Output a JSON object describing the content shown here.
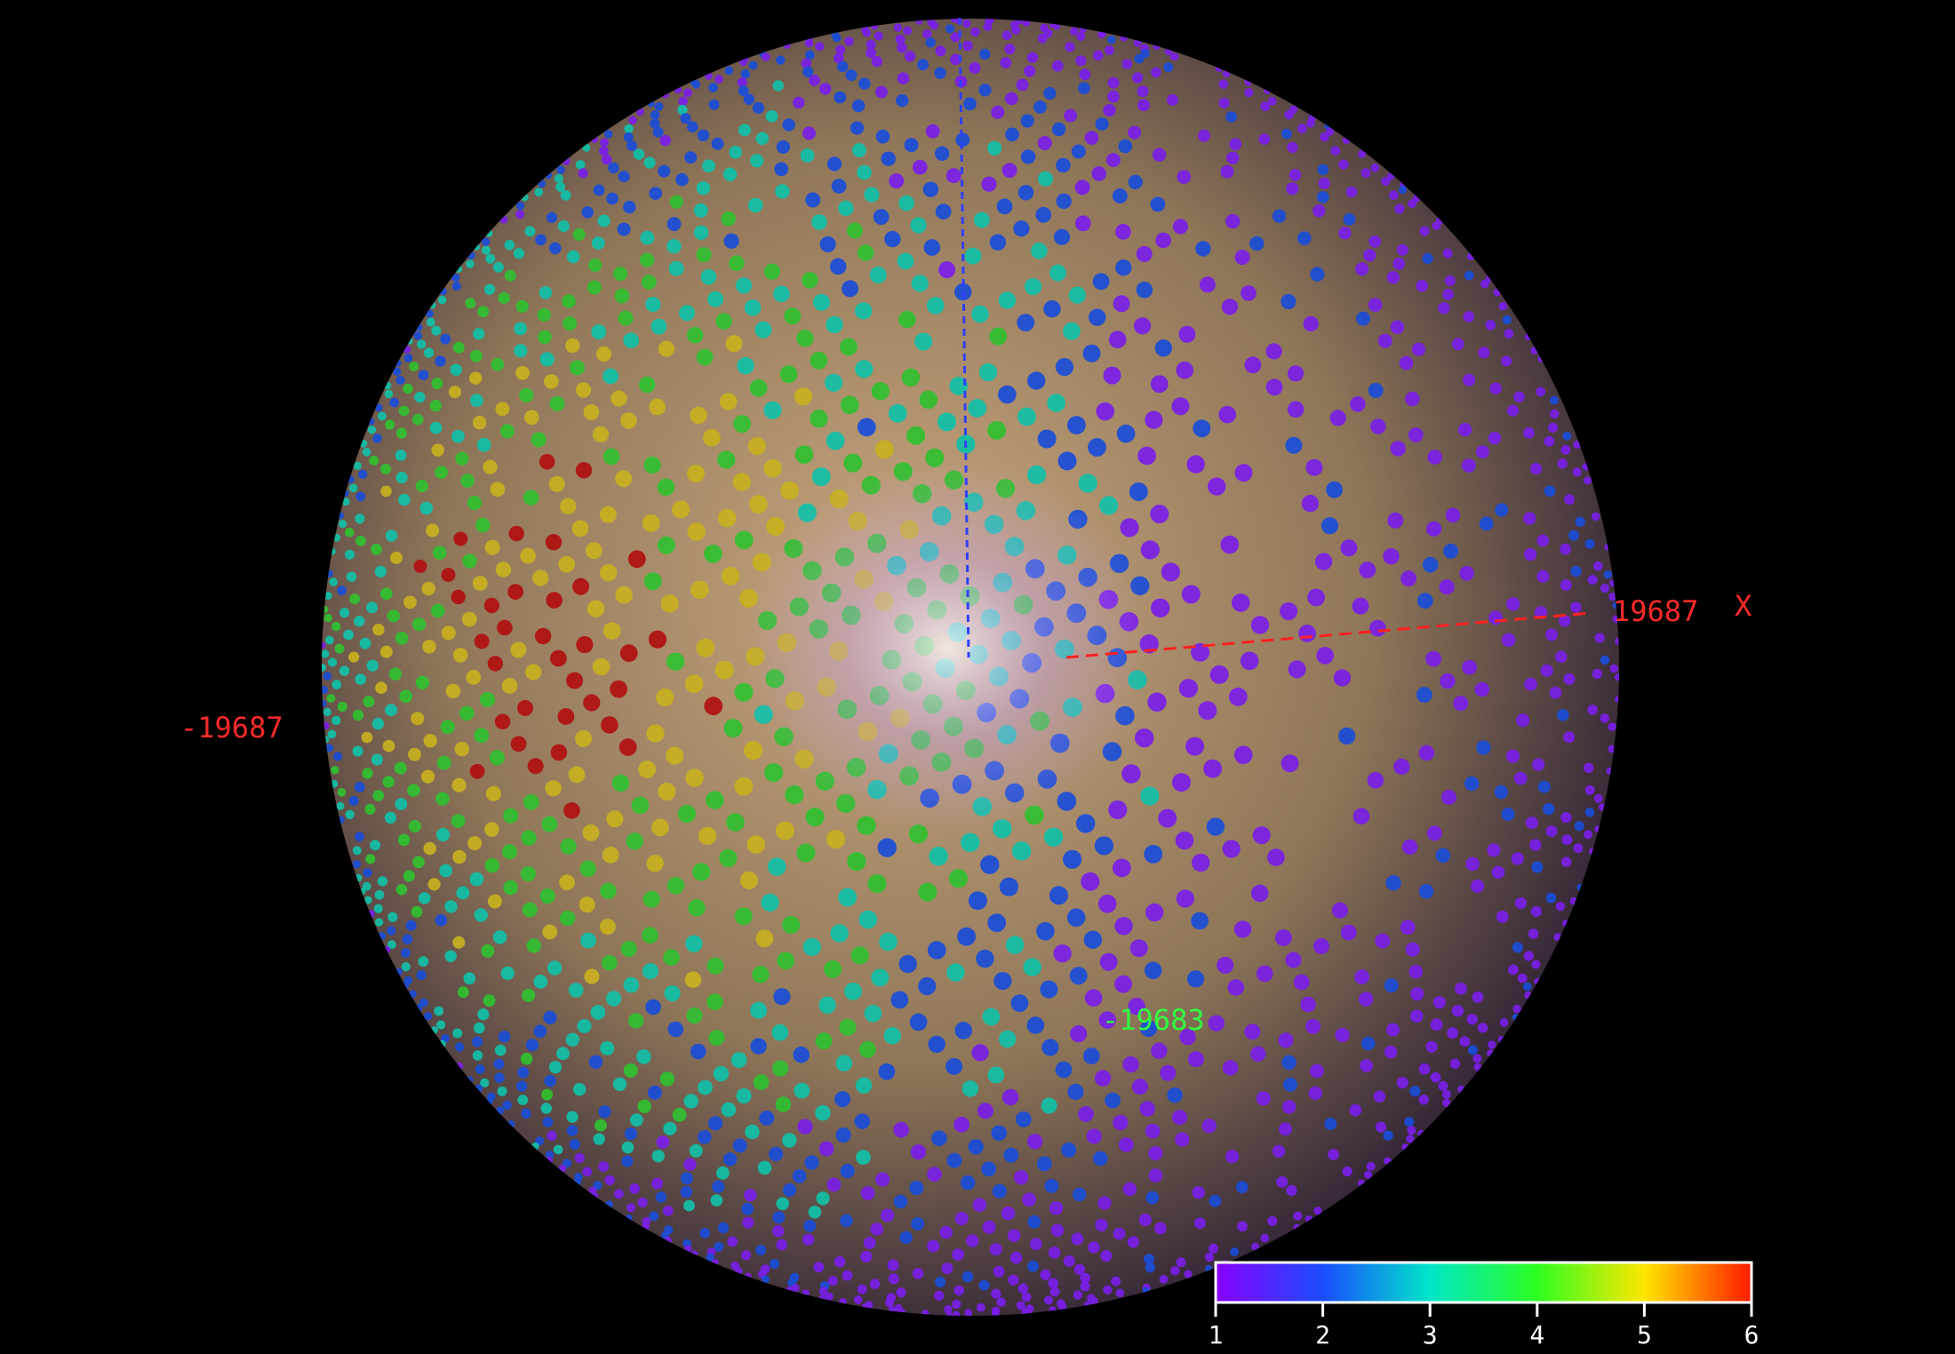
{
  "axis_labels": {
    "x_min": "-19687",
    "x_max": "19687",
    "x_name": "X",
    "y_min": "-19683"
  },
  "colorbar": {
    "ticks": [
      1,
      2,
      3,
      4,
      5,
      6
    ]
  }
}
